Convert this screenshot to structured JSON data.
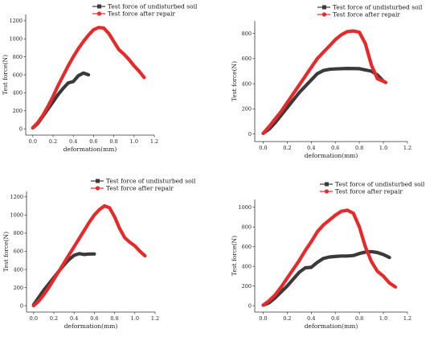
{
  "colors": {
    "undisturbed": "#3a3a3a",
    "repair": "#e8292a",
    "axis": "#333333"
  },
  "chart_data": [
    {
      "type": "line",
      "xlabel": "deformation(mm)",
      "ylabel": "Test force(N)",
      "xlim": [
        -0.07,
        1.2
      ],
      "ylim": [
        -70,
        1270
      ],
      "xticks": [
        0.0,
        0.2,
        0.4,
        0.6,
        0.8,
        1.0,
        1.2
      ],
      "xtick_labels": [
        "0.0",
        "0.2",
        "0.4",
        "0.6",
        "0.8",
        "1.0",
        "1.2"
      ],
      "yticks": [
        0,
        200,
        400,
        600,
        800,
        1000,
        1200
      ],
      "ytick_labels": [
        "0",
        "200",
        "400",
        "600",
        "800",
        "1000",
        "1200"
      ],
      "legend_position": "top-center",
      "series": [
        {
          "name": "Test force of undisturbed soil",
          "color_key": "undisturbed",
          "marker": "square",
          "x": [
            0.0,
            0.05,
            0.1,
            0.15,
            0.2,
            0.25,
            0.3,
            0.35,
            0.4,
            0.45,
            0.5,
            0.52,
            0.55
          ],
          "y": [
            10,
            60,
            140,
            220,
            300,
            380,
            450,
            510,
            525,
            590,
            620,
            612,
            600
          ]
        },
        {
          "name": "Test force after repair",
          "color_key": "repair",
          "marker": "circle",
          "x": [
            0.0,
            0.05,
            0.1,
            0.15,
            0.2,
            0.25,
            0.3,
            0.35,
            0.4,
            0.45,
            0.5,
            0.55,
            0.6,
            0.65,
            0.7,
            0.75,
            0.8,
            0.85,
            0.9,
            0.95,
            1.0,
            1.05,
            1.1
          ],
          "y": [
            10,
            70,
            150,
            250,
            360,
            480,
            590,
            700,
            800,
            890,
            970,
            1040,
            1100,
            1125,
            1120,
            1060,
            970,
            880,
            830,
            770,
            700,
            640,
            570
          ]
        }
      ]
    },
    {
      "type": "line",
      "xlabel": "deformation(mm)",
      "ylabel": "Test force(N)",
      "xlim": [
        -0.07,
        1.2
      ],
      "ylim": [
        -60,
        900
      ],
      "xticks": [
        0.0,
        0.2,
        0.4,
        0.6,
        0.8,
        1.0,
        1.2
      ],
      "xtick_labels": [
        "0.0",
        "0.2",
        "0.4",
        "0.6",
        "0.8",
        "1.0",
        "1.2"
      ],
      "yticks": [
        0,
        200,
        400,
        600,
        800
      ],
      "ytick_labels": [
        "0",
        "200",
        "400",
        "600",
        "800"
      ],
      "legend_position": "top-center",
      "series": [
        {
          "name": "Test force of undisturbed soil",
          "color_key": "undisturbed",
          "marker": "square",
          "x": [
            0.0,
            0.05,
            0.1,
            0.15,
            0.2,
            0.25,
            0.3,
            0.35,
            0.4,
            0.45,
            0.5,
            0.55,
            0.6,
            0.7,
            0.8,
            0.9,
            0.95,
            1.0
          ],
          "y": [
            5,
            40,
            90,
            150,
            210,
            270,
            330,
            380,
            430,
            480,
            505,
            515,
            518,
            522,
            520,
            500,
            470,
            420
          ]
        },
        {
          "name": "Test force after repair",
          "color_key": "repair",
          "marker": "circle",
          "x": [
            0.0,
            0.05,
            0.1,
            0.15,
            0.2,
            0.25,
            0.3,
            0.35,
            0.4,
            0.45,
            0.5,
            0.55,
            0.6,
            0.65,
            0.7,
            0.75,
            0.8,
            0.85,
            0.9,
            0.95,
            1.0,
            1.02
          ],
          "y": [
            5,
            60,
            120,
            180,
            250,
            320,
            390,
            460,
            530,
            600,
            650,
            700,
            750,
            790,
            815,
            820,
            810,
            720,
            550,
            440,
            420,
            410
          ]
        }
      ]
    },
    {
      "type": "line",
      "xlabel": "deformation(mm)",
      "ylabel": "Test force(N)",
      "xlim": [
        -0.07,
        1.2
      ],
      "ylim": [
        -70,
        1260
      ],
      "xticks": [
        0.0,
        0.2,
        0.4,
        0.6,
        0.8,
        1.0,
        1.2
      ],
      "xtick_labels": [
        "0.0",
        "0.2",
        "0.4",
        "0.6",
        "0.8",
        "1.0",
        "1.2"
      ],
      "yticks": [
        0,
        200,
        400,
        600,
        800,
        1000,
        1200
      ],
      "ytick_labels": [
        "0",
        "200",
        "400",
        "600",
        "800",
        "1000",
        "1200"
      ],
      "legend_position": "top-center",
      "series": [
        {
          "name": "Test force of undisturbed soil",
          "color_key": "undisturbed",
          "marker": "square",
          "x": [
            0.0,
            0.05,
            0.1,
            0.15,
            0.2,
            0.25,
            0.3,
            0.35,
            0.4,
            0.45,
            0.5,
            0.55,
            0.6
          ],
          "y": [
            10,
            90,
            170,
            240,
            310,
            380,
            450,
            510,
            555,
            575,
            565,
            570,
            570
          ]
        },
        {
          "name": "Test force after repair",
          "color_key": "repair",
          "marker": "circle",
          "x": [
            0.0,
            0.05,
            0.1,
            0.15,
            0.2,
            0.25,
            0.3,
            0.35,
            0.4,
            0.45,
            0.5,
            0.55,
            0.6,
            0.65,
            0.7,
            0.75,
            0.8,
            0.85,
            0.9,
            0.95,
            1.0,
            1.05,
            1.1
          ],
          "y": [
            0,
            50,
            120,
            200,
            290,
            380,
            470,
            560,
            650,
            740,
            830,
            920,
            1000,
            1060,
            1100,
            1080,
            980,
            850,
            750,
            700,
            660,
            600,
            550
          ]
        }
      ]
    },
    {
      "type": "line",
      "xlabel": "deformation(mm)",
      "ylabel": "Test force(N)",
      "xlim": [
        -0.07,
        1.2
      ],
      "ylim": [
        -65,
        1080
      ],
      "xticks": [
        0.0,
        0.2,
        0.4,
        0.6,
        0.8,
        1.0,
        1.2
      ],
      "xtick_labels": [
        "0.0",
        "0.2",
        "0.4",
        "0.6",
        "0.8",
        "1.0",
        "1.2"
      ],
      "yticks": [
        0,
        200,
        400,
        600,
        800,
        1000
      ],
      "ytick_labels": [
        "0",
        "200",
        "400",
        "600",
        "800",
        "1000"
      ],
      "legend_position": "top-right",
      "series": [
        {
          "name": "Test force of undisturbed soil",
          "color_key": "undisturbed",
          "marker": "square",
          "x": [
            0.0,
            0.05,
            0.1,
            0.15,
            0.2,
            0.25,
            0.3,
            0.35,
            0.4,
            0.45,
            0.5,
            0.55,
            0.6,
            0.65,
            0.7,
            0.75,
            0.8,
            0.85,
            0.9,
            0.95,
            1.0,
            1.05
          ],
          "y": [
            5,
            30,
            80,
            140,
            200,
            270,
            340,
            385,
            390,
            440,
            480,
            495,
            500,
            505,
            505,
            510,
            530,
            545,
            550,
            540,
            520,
            490
          ]
        },
        {
          "name": "Test force after repair",
          "color_key": "repair",
          "marker": "circle",
          "x": [
            0.0,
            0.05,
            0.1,
            0.15,
            0.2,
            0.25,
            0.3,
            0.35,
            0.4,
            0.45,
            0.5,
            0.55,
            0.6,
            0.65,
            0.7,
            0.75,
            0.8,
            0.85,
            0.9,
            0.95,
            1.0,
            1.05,
            1.1
          ],
          "y": [
            5,
            50,
            110,
            190,
            280,
            370,
            460,
            560,
            650,
            750,
            820,
            870,
            920,
            960,
            970,
            940,
            800,
            600,
            450,
            350,
            300,
            230,
            190
          ]
        }
      ]
    }
  ]
}
